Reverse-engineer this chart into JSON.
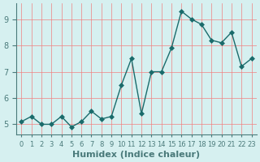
{
  "x": [
    0,
    1,
    2,
    3,
    4,
    5,
    6,
    7,
    8,
    9,
    10,
    11,
    12,
    13,
    14,
    15,
    16,
    17,
    18,
    19,
    20,
    21,
    22,
    23
  ],
  "y": [
    5.1,
    5.3,
    5.0,
    5.0,
    5.3,
    4.9,
    5.1,
    5.5,
    5.2,
    5.3,
    6.5,
    7.5,
    5.4,
    7.0,
    7.0,
    7.9,
    9.3,
    9.0,
    8.8,
    8.2,
    8.1,
    8.5,
    7.2,
    7.5
  ],
  "line_color": "#1a6b6b",
  "marker": "D",
  "marker_size": 3,
  "bg_color": "#d6f0f0",
  "grid_color": "#f08080",
  "xlabel": "Humidex (Indice chaleur)",
  "xlabel_fontsize": 8,
  "ylabel_ticks": [
    5,
    6,
    7,
    8,
    9
  ],
  "ylim": [
    4.6,
    9.6
  ],
  "xlim": [
    -0.5,
    23.5
  ],
  "tick_fontsize": 7,
  "axis_color": "#4a7a7a",
  "spine_color": "#4a7a7a"
}
